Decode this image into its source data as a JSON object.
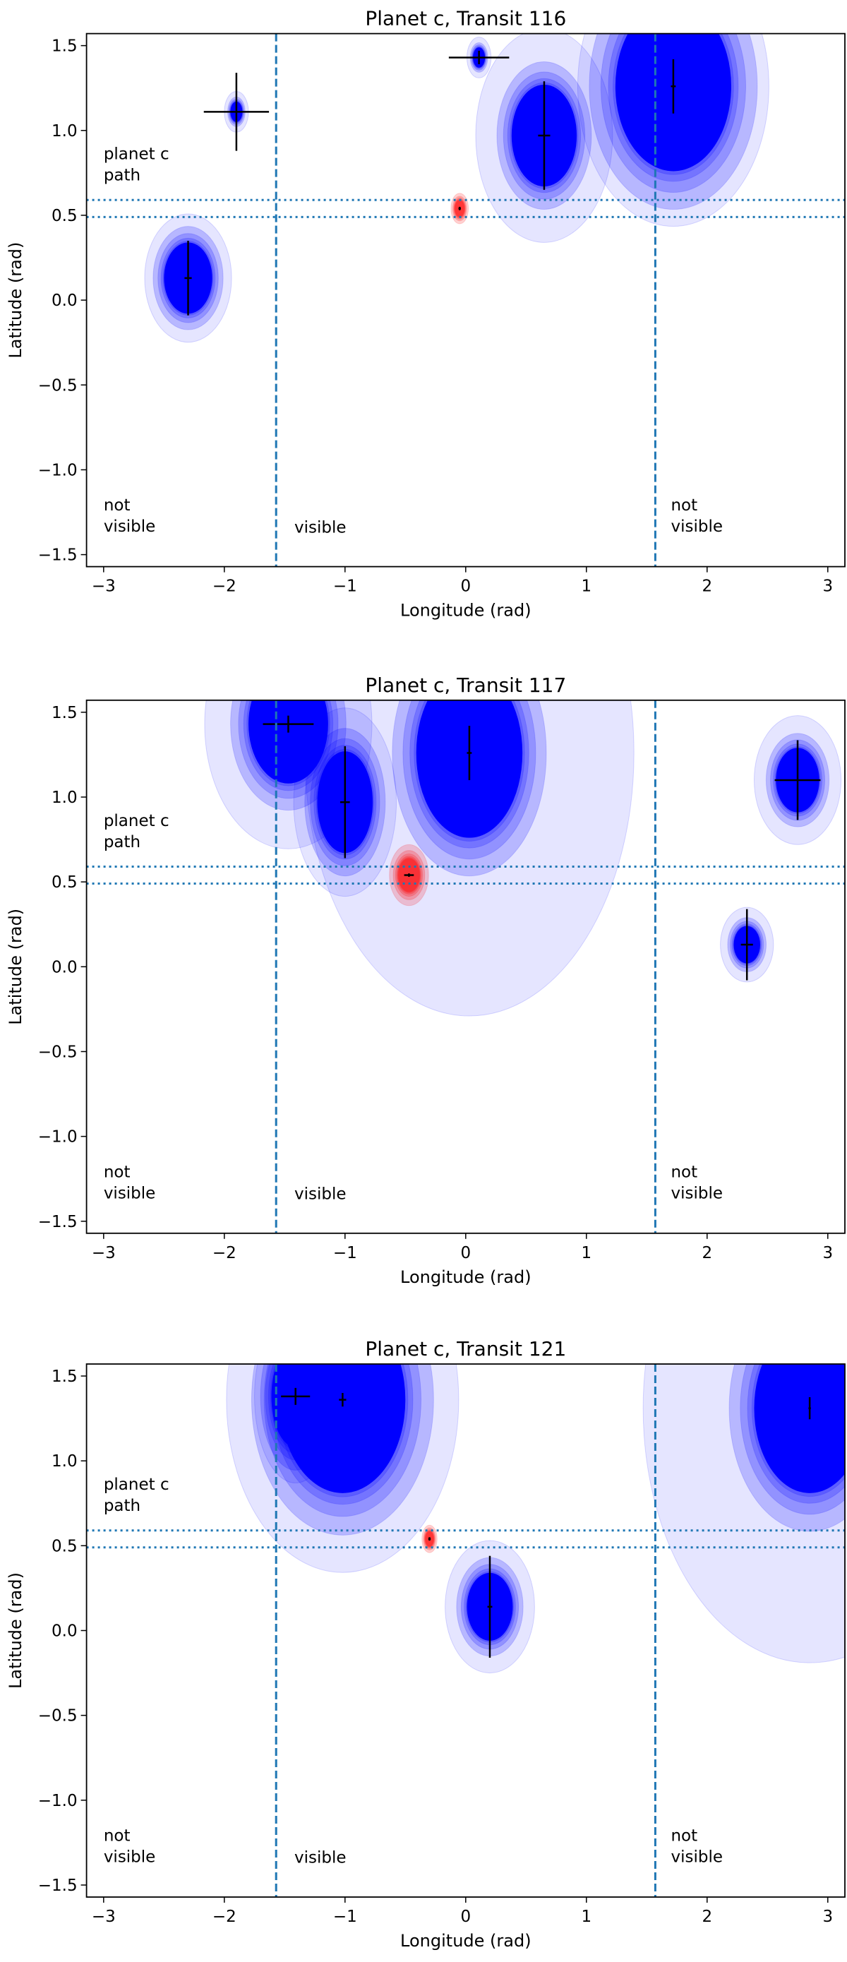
{
  "colors": {
    "candidate": "#0000ff",
    "planet": "#ff0000",
    "guide_lines": "#1f77b4",
    "axes": "#000000"
  },
  "chart_data": [
    {
      "type": "scatter",
      "title": "Planet c, Transit 116",
      "xlabel": "Longitude (rad)",
      "ylabel": "Latitude (rad)",
      "xlim": [
        -3.1416,
        3.1416
      ],
      "ylim": [
        -1.5708,
        1.5708
      ],
      "grid": false,
      "xticks": [
        {
          "v": -3,
          "label": "−3"
        },
        {
          "v": -2,
          "label": "−2"
        },
        {
          "v": -1,
          "label": "−1"
        },
        {
          "v": 0,
          "label": "0"
        },
        {
          "v": 1,
          "label": "1"
        },
        {
          "v": 2,
          "label": "2"
        },
        {
          "v": 3,
          "label": "3"
        }
      ],
      "yticks": [
        {
          "v": 1.5,
          "label": "1.5"
        },
        {
          "v": 1.0,
          "label": "1.0"
        },
        {
          "v": 0.5,
          "label": "0.5"
        },
        {
          "v": 0.0,
          "label": "0.0"
        },
        {
          "v": -0.5,
          "label": "−0.5"
        },
        {
          "v": -1.0,
          "label": "−1.0"
        },
        {
          "v": -1.5,
          "label": "−1.5"
        }
      ],
      "vlines": [
        -1.5708,
        1.5708
      ],
      "hlines": [
        0.49,
        0.59
      ],
      "annotations": [
        {
          "lines": [
            "planet c",
            "path"
          ],
          "x": -3.0,
          "y": 0.83
        },
        {
          "lines": [
            "not",
            "visible"
          ],
          "x": -3.0,
          "y": -1.24
        },
        {
          "lines": [
            "visible"
          ],
          "x": -1.42,
          "y": -1.37
        },
        {
          "lines": [
            "not",
            "visible"
          ],
          "x": 1.7,
          "y": -1.24
        }
      ],
      "points": [
        {
          "kind": "candidate",
          "lon": -2.3,
          "lat": 0.13,
          "core": [
            0.2,
            0.21
          ],
          "halo": 1.8,
          "xerr": 0.03,
          "yerr": 0.22
        },
        {
          "kind": "candidate",
          "lon": -1.9,
          "lat": 1.11,
          "core": [
            0.05,
            0.06
          ],
          "halo": 2.0,
          "xerr": 0.27,
          "yerr": 0.23
        },
        {
          "kind": "candidate",
          "lon": 0.11,
          "lat": 1.43,
          "core": [
            0.05,
            0.06
          ],
          "halo": 2.0,
          "xerr": 0.25,
          "yerr": 0.04
        },
        {
          "kind": "candidate",
          "lon": 0.65,
          "lat": 0.97,
          "core": [
            0.27,
            0.3
          ],
          "halo": 2.1,
          "xerr": 0.05,
          "yerr": 0.32
        },
        {
          "kind": "candidate",
          "lon": 1.72,
          "lat": 1.26,
          "core": [
            0.48,
            0.5
          ],
          "halo": 1.65,
          "xerr": 0.02,
          "yerr": 0.16
        },
        {
          "kind": "planet",
          "lon": -0.05,
          "lat": 0.54,
          "core": [
            0.04,
            0.05
          ],
          "halo": 1.8,
          "xerr": 0.01,
          "yerr": 0.01
        }
      ]
    },
    {
      "type": "scatter",
      "title": "Planet c, Transit 117",
      "xlabel": "Longitude (rad)",
      "ylabel": "Latitude (rad)",
      "xlim": [
        -3.1416,
        3.1416
      ],
      "ylim": [
        -1.5708,
        1.5708
      ],
      "grid": false,
      "xticks": [
        {
          "v": -3,
          "label": "−3"
        },
        {
          "v": -2,
          "label": "−2"
        },
        {
          "v": -1,
          "label": "−1"
        },
        {
          "v": 0,
          "label": "0"
        },
        {
          "v": 1,
          "label": "1"
        },
        {
          "v": 2,
          "label": "2"
        },
        {
          "v": 3,
          "label": "3"
        }
      ],
      "yticks": [
        {
          "v": 1.5,
          "label": "1.5"
        },
        {
          "v": 1.0,
          "label": "1.0"
        },
        {
          "v": 0.5,
          "label": "0.5"
        },
        {
          "v": 0.0,
          "label": "0.0"
        },
        {
          "v": -0.5,
          "label": "−0.5"
        },
        {
          "v": -1.0,
          "label": "−1.0"
        },
        {
          "v": -1.5,
          "label": "−1.5"
        }
      ],
      "vlines": [
        -1.5708,
        1.5708
      ],
      "hlines": [
        0.49,
        0.59
      ],
      "annotations": [
        {
          "lines": [
            "planet c",
            "path"
          ],
          "x": -3.0,
          "y": 0.83
        },
        {
          "lines": [
            "not",
            "visible"
          ],
          "x": -3.0,
          "y": -1.24
        },
        {
          "lines": [
            "visible"
          ],
          "x": -1.42,
          "y": -1.37
        },
        {
          "lines": [
            "not",
            "visible"
          ],
          "x": 1.7,
          "y": -1.24
        }
      ],
      "points": [
        {
          "kind": "candidate",
          "lon": -1.47,
          "lat": 1.43,
          "core": [
            0.33,
            0.35
          ],
          "halo": 2.1,
          "xerr": 0.21,
          "yerr": 0.05
        },
        {
          "kind": "candidate",
          "lon": -1.0,
          "lat": 0.97,
          "core": [
            0.23,
            0.3
          ],
          "halo": 1.85,
          "xerr": 0.04,
          "yerr": 0.33
        },
        {
          "kind": "candidate",
          "lon": 0.03,
          "lat": 1.26,
          "core": [
            0.44,
            0.5
          ],
          "halo": 3.1,
          "xerr": 0.02,
          "yerr": 0.16
        },
        {
          "kind": "candidate",
          "lon": 2.75,
          "lat": 1.1,
          "core": [
            0.18,
            0.19
          ],
          "halo": 2.0,
          "xerr": 0.19,
          "yerr": 0.235
        },
        {
          "kind": "candidate",
          "lon": 2.33,
          "lat": 0.13,
          "core": [
            0.11,
            0.11
          ],
          "halo": 2.0,
          "xerr": 0.05,
          "yerr": 0.21
        },
        {
          "kind": "planet",
          "lon": -0.47,
          "lat": 0.54,
          "core": [
            0.09,
            0.1
          ],
          "halo": 1.8,
          "xerr": 0.04,
          "yerr": 0.01
        }
      ]
    },
    {
      "type": "scatter",
      "title": "Planet c, Transit 121",
      "xlabel": "Longitude (rad)",
      "ylabel": "Latitude (rad)",
      "xlim": [
        -3.1416,
        3.1416
      ],
      "ylim": [
        -1.5708,
        1.5708
      ],
      "grid": false,
      "xticks": [
        {
          "v": -3,
          "label": "−3"
        },
        {
          "v": -2,
          "label": "−2"
        },
        {
          "v": -1,
          "label": "−1"
        },
        {
          "v": 0,
          "label": "0"
        },
        {
          "v": 1,
          "label": "1"
        },
        {
          "v": 2,
          "label": "2"
        },
        {
          "v": 3,
          "label": "3"
        }
      ],
      "yticks": [
        {
          "v": 1.5,
          "label": "1.5"
        },
        {
          "v": 1.0,
          "label": "1.0"
        },
        {
          "v": 0.5,
          "label": "0.5"
        },
        {
          "v": 0.0,
          "label": "0.0"
        },
        {
          "v": -0.5,
          "label": "−0.5"
        },
        {
          "v": -1.0,
          "label": "−1.0"
        },
        {
          "v": -1.5,
          "label": "−1.5"
        }
      ],
      "vlines": [
        -1.5708,
        1.5708
      ],
      "hlines": [
        0.49,
        0.59
      ],
      "annotations": [
        {
          "lines": [
            "planet c",
            "path"
          ],
          "x": -3.0,
          "y": 0.83
        },
        {
          "lines": [
            "not",
            "visible"
          ],
          "x": -3.0,
          "y": -1.24
        },
        {
          "lines": [
            "visible"
          ],
          "x": -1.42,
          "y": -1.37
        },
        {
          "lines": [
            "not",
            "visible"
          ],
          "x": 1.7,
          "y": -1.24
        }
      ],
      "points": [
        {
          "kind": "candidate",
          "lon": -1.41,
          "lat": 1.38,
          "core": [
            0.2,
            0.3
          ],
          "halo": 1.7,
          "xerr": 0.12,
          "yerr": 0.05
        },
        {
          "kind": "candidate",
          "lon": -1.02,
          "lat": 1.36,
          "core": [
            0.52,
            0.55
          ],
          "halo": 1.85,
          "xerr": 0.03,
          "yerr": 0.04
        },
        {
          "kind": "candidate",
          "lon": 0.2,
          "lat": 0.14,
          "core": [
            0.19,
            0.2
          ],
          "halo": 1.95,
          "xerr": 0.02,
          "yerr": 0.3
        },
        {
          "kind": "candidate",
          "lon": 2.85,
          "lat": 1.31,
          "core": [
            0.46,
            0.5
          ],
          "halo": 3.0,
          "xerr": 0.01,
          "yerr": 0.065
        },
        {
          "kind": "planet",
          "lon": -0.3,
          "lat": 0.54,
          "core": [
            0.035,
            0.045
          ],
          "halo": 1.8,
          "xerr": 0.01,
          "yerr": 0.01
        }
      ]
    }
  ]
}
